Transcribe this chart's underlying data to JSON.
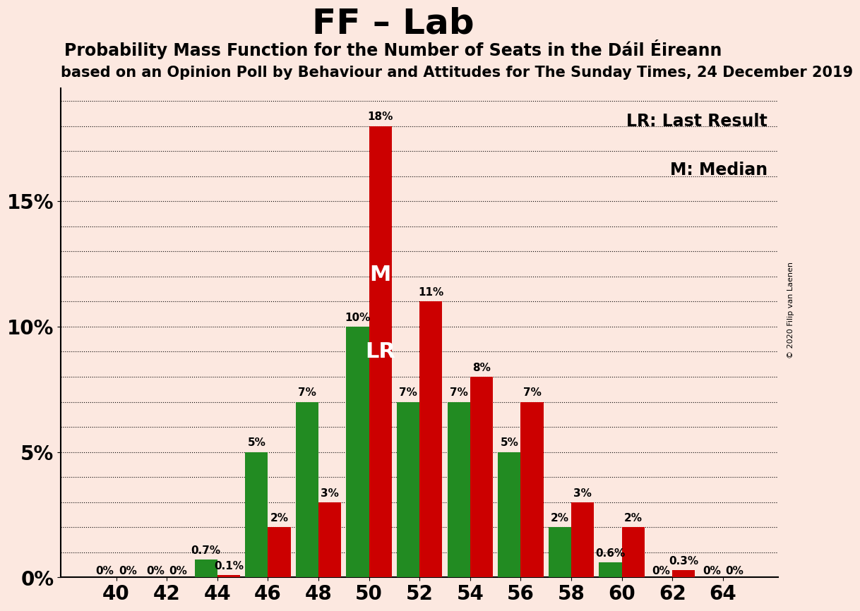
{
  "title": "FF – Lab",
  "subtitle1": "Probability Mass Function for the Number of Seats in the Dáil Éireann",
  "subtitle2": "based on an Opinion Poll by Behaviour and Attitudes for The Sunday Times, 24 December 2019",
  "copyright": "© 2020 Filip van Laenen",
  "legend_lr": "LR: Last Result",
  "legend_m": "M: Median",
  "background_color": "#fce8e0",
  "green_color": "#228B22",
  "red_color": "#cc0000",
  "seats": [
    40,
    42,
    44,
    46,
    48,
    50,
    52,
    54,
    56,
    58,
    60,
    62,
    64
  ],
  "green_values": [
    0.0,
    0.0,
    0.7,
    5.0,
    7.0,
    10.0,
    7.0,
    7.0,
    5.0,
    2.0,
    0.6,
    0.0,
    0.0
  ],
  "red_values": [
    0.0,
    0.0,
    0.1,
    2.0,
    3.0,
    18.0,
    11.0,
    8.0,
    7.0,
    3.0,
    2.0,
    0.3,
    0.0
  ],
  "green_labels": [
    "0%",
    "0%",
    "0.7%",
    "5%",
    "7%",
    "10%",
    "7%",
    "7%",
    "5%",
    "2%",
    "0.6%",
    "0%",
    "0%"
  ],
  "red_labels": [
    "0%",
    "0%",
    "0.1%",
    "2%",
    "3%",
    "18%",
    "11%",
    "8%",
    "7%",
    "3%",
    "2%",
    "0.3%",
    "0%"
  ],
  "median_seat_idx": 5,
  "ylim": [
    0,
    19.5
  ],
  "yticks": [
    0,
    5,
    10,
    15
  ],
  "ytick_labels": [
    "0%",
    "5%",
    "10%",
    "15%"
  ],
  "grid_yticks": [
    0,
    1,
    2,
    3,
    4,
    5,
    6,
    7,
    8,
    9,
    10,
    11,
    12,
    13,
    14,
    15,
    16,
    17,
    18,
    19
  ],
  "label_fontsize": 11,
  "tick_fontsize": 20,
  "bar_width": 0.9,
  "title_fontsize": 36,
  "subtitle1_fontsize": 17,
  "subtitle2_fontsize": 15,
  "legend_fontsize": 17
}
